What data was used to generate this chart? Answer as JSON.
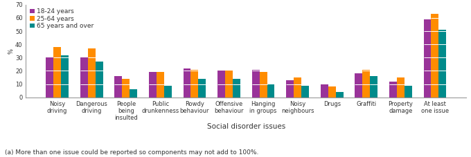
{
  "categories": [
    "Noisy\ndriving",
    "Dangerous\ndriving",
    "People\nbeing\ninsulted",
    "Public\ndrunkenness",
    "Rowdy\nbehaviour",
    "Offensive\nbehaviour",
    "Hanging\nin groups",
    "Noisy\nneighbours",
    "Drugs",
    "Graffiti",
    "Property\ndamage",
    "At least\none issue"
  ],
  "series": {
    "18-24 years": [
      30,
      30,
      16,
      19,
      22,
      20,
      21,
      13,
      10,
      18,
      12,
      59
    ],
    "25-64 years": [
      38,
      37,
      14,
      19,
      21,
      20,
      19,
      15,
      8,
      21,
      15,
      63
    ],
    "65 years and over": [
      32,
      27,
      6,
      9,
      14,
      14,
      10,
      9,
      4,
      16,
      9,
      51
    ]
  },
  "colors": {
    "18-24 years": "#993399",
    "25-64 years": "#FF8C00",
    "65 years and over": "#008B8B"
  },
  "ylabel": "%",
  "xlabel": "Social disorder issues",
  "ylim": [
    0,
    70
  ],
  "yticks": [
    0,
    10,
    20,
    30,
    40,
    50,
    60,
    70
  ],
  "footnote": "(a) More than one issue could be reported so components may not add to 100%.",
  "legend_order": [
    "18-24 years",
    "25-64 years",
    "65 years and over"
  ],
  "bar_width": 0.22,
  "background_color": "#ffffff",
  "axis_fontsize": 6.0,
  "legend_fontsize": 6.5,
  "xlabel_fontsize": 7.5,
  "footnote_fontsize": 6.5
}
